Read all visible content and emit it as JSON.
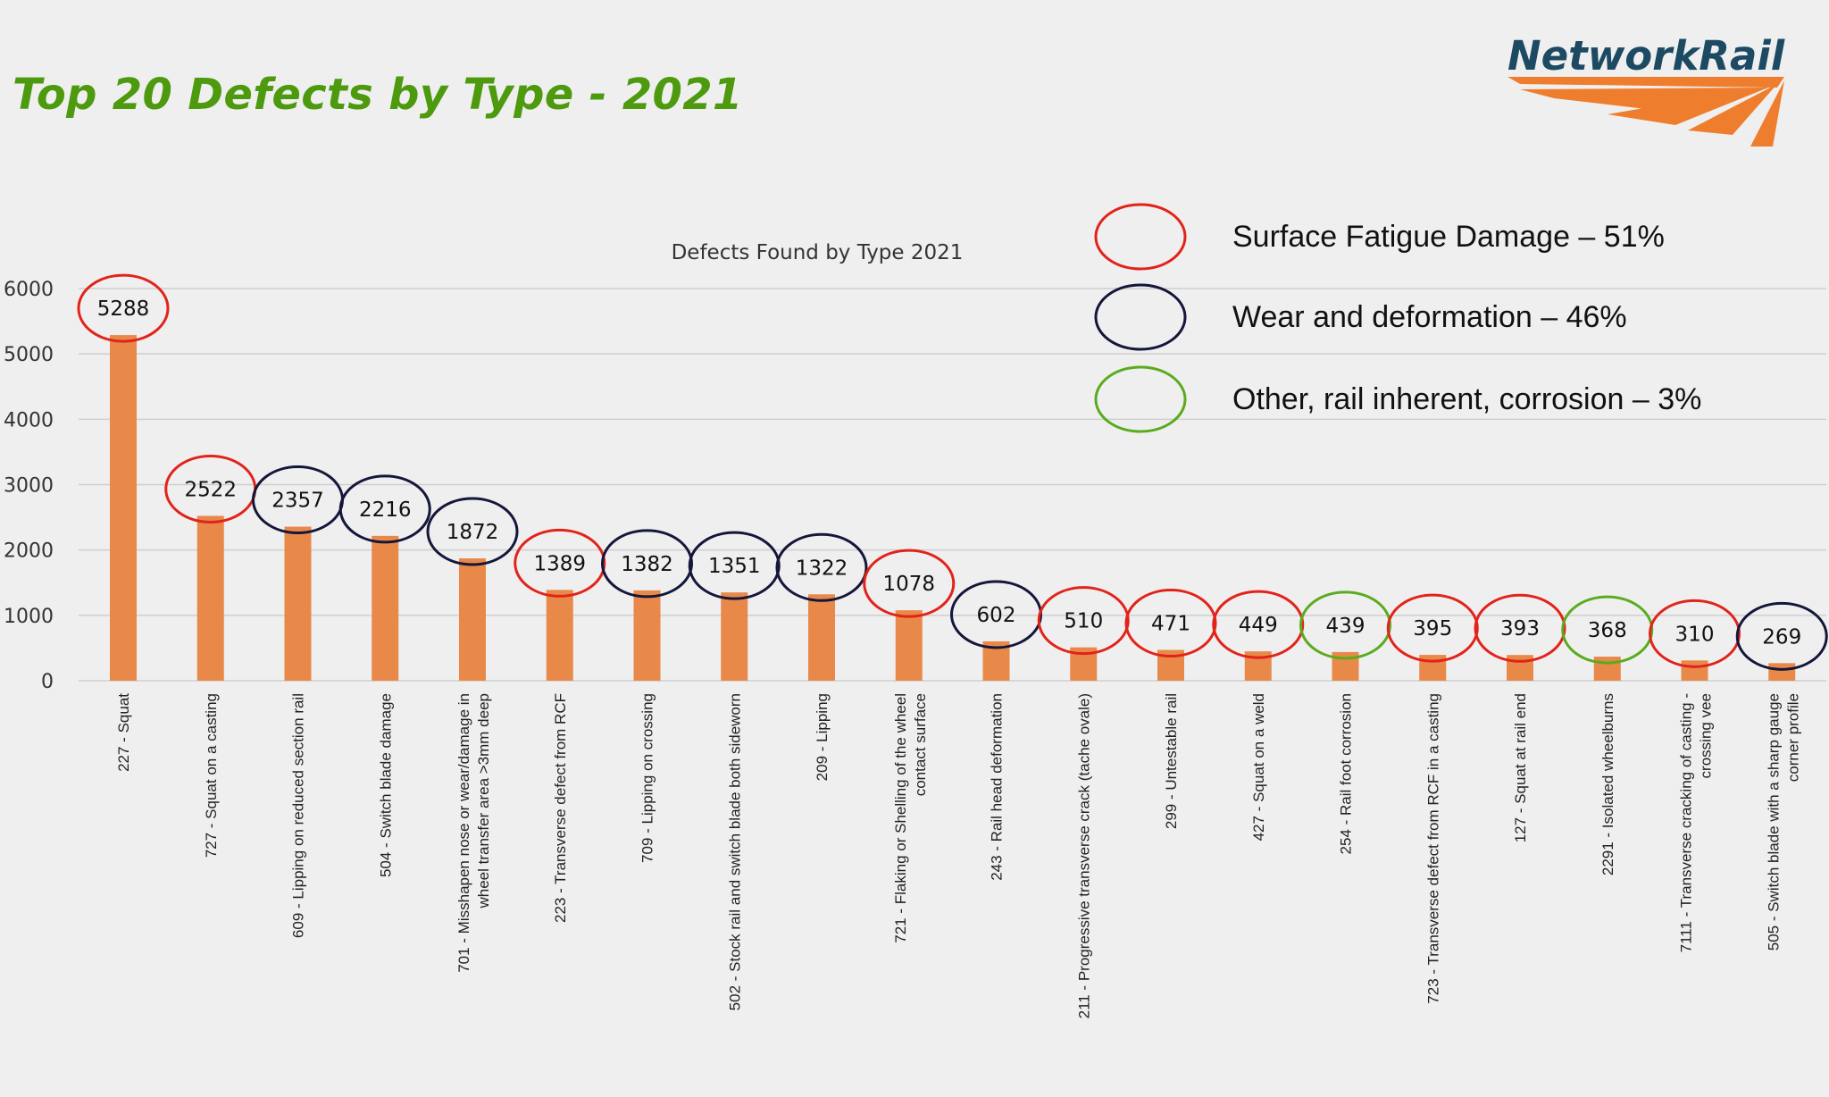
{
  "slide": {
    "title": "Top 20 Defects by Type - 2021",
    "logo_text": "NetworkRail"
  },
  "legend": [
    {
      "label": "Surface Fatigue Damage – 51%",
      "color": "#e2231a",
      "category": "surface"
    },
    {
      "label": " Wear and deformation – 46%",
      "color": "#14163a",
      "category": "wear"
    },
    {
      "label": "Other, rail inherent, corrosion – 3%",
      "color": "#5aab1e",
      "category": "other"
    }
  ],
  "colors": {
    "bar": "#e8894a",
    "grid": "#cfcfcf",
    "title_green": "#4d9a0f",
    "logo_navy": "#1d4a63",
    "logo_orange": "#ef7d2e"
  },
  "chart_data": {
    "type": "bar",
    "title": "Defects Found by Type 2021",
    "xlabel": "",
    "ylabel": "",
    "ylim": [
      0,
      6000
    ],
    "yticks": [
      0,
      1000,
      2000,
      3000,
      4000,
      5000,
      6000
    ],
    "grid": true,
    "legend_position": "top-right",
    "categories": [
      "227 - Squat",
      "727 - Squat on a casting",
      "609 - Lipping on reduced section rail",
      "504 - Switch blade damage",
      "701 - Misshapen nose or wear/damage in wheel transfer area >3mm deep",
      "223 - Transverse defect from RCF",
      "709 - Lipping on crossing",
      "502 - Stock rail and switch blade both sideworn",
      "209 - Lipping",
      "721 - Flaking or Shelling of the wheel contact surface",
      "243 - Rail head deformation",
      "211 - Progressive transverse crack (tache ovale)",
      "299 - Untestable rail",
      "427 - Squat on a weld",
      "254 - Rail foot corrosion",
      "723 - Transverse defect from RCF in a casting",
      "127 - Squat at rail end",
      "2291 - Isolated wheelburns",
      "7111 - Transverse cracking of casting - crossing vee",
      "505 - Switch blade with a sharp gauge corner profile"
    ],
    "values": [
      5288,
      2522,
      2357,
      2216,
      1872,
      1389,
      1382,
      1351,
      1322,
      1078,
      602,
      510,
      471,
      449,
      439,
      395,
      393,
      368,
      310,
      269
    ],
    "circle_category": [
      "surface",
      "surface",
      "wear",
      "wear",
      "wear",
      "surface",
      "wear",
      "wear",
      "wear",
      "surface",
      "wear",
      "surface",
      "surface",
      "surface",
      "other",
      "surface",
      "surface",
      "other",
      "surface",
      "wear"
    ]
  }
}
